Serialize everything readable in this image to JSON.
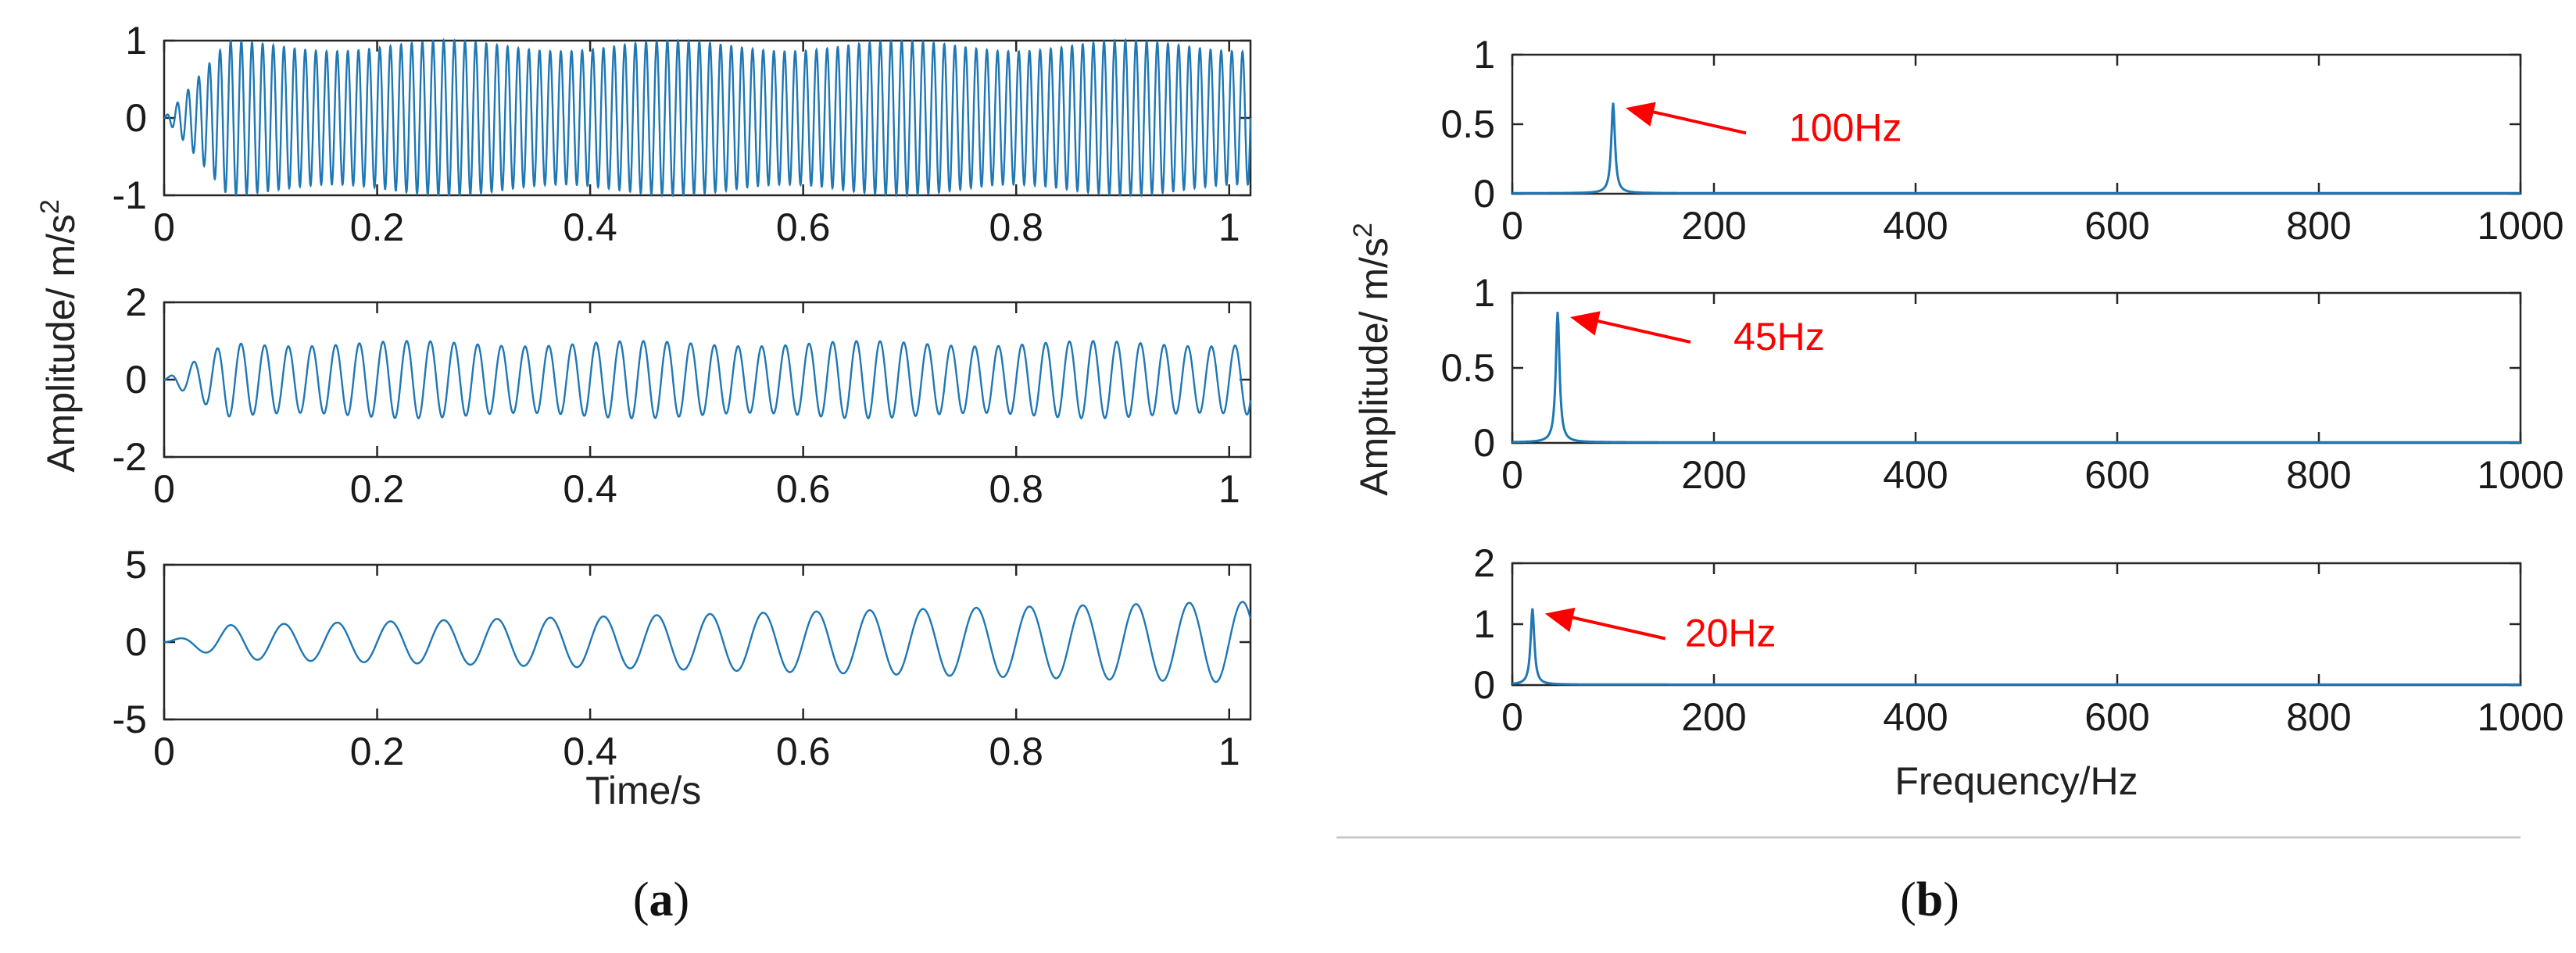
{
  "figure": {
    "caption_a": {
      "open": "(",
      "letter": "a",
      "close": ")"
    },
    "caption_b": {
      "open": "(",
      "letter": "b",
      "close": ")"
    }
  },
  "chart_data": [
    {
      "type": "line",
      "panel": "a",
      "series": [
        {
          "frequency_hz": 100,
          "amplitude": 1.0
        }
      ],
      "xlim": [
        0,
        1.02
      ],
      "ylim": [
        -1,
        1
      ],
      "xticks": [
        "0",
        "0.2",
        "0.4",
        "0.6",
        "0.8",
        "1"
      ],
      "yticks": [
        "-1",
        "0",
        "1"
      ],
      "color": "#1f77b4"
    },
    {
      "type": "line",
      "panel": "a",
      "series": [
        {
          "frequency_hz": 45,
          "amplitude": 1.0
        }
      ],
      "xlim": [
        0,
        1.02
      ],
      "ylim": [
        -2,
        2
      ],
      "xticks": [
        "0",
        "0.2",
        "0.4",
        "0.6",
        "0.8",
        "1"
      ],
      "yticks": [
        "-2",
        "0",
        "2"
      ],
      "color": "#1f77b4"
    },
    {
      "type": "line",
      "panel": "a",
      "series": [
        {
          "frequency_hz": 20,
          "amplitude_start": 1.0,
          "amplitude_end": 2.6
        }
      ],
      "xlim": [
        0,
        1.02
      ],
      "ylim": [
        -5,
        5
      ],
      "xticks": [
        "0",
        "0.2",
        "0.4",
        "0.6",
        "0.8",
        "1"
      ],
      "yticks": [
        "-5",
        "0",
        "5"
      ],
      "xlabel": "Time/s",
      "color": "#1f77b4"
    },
    {
      "type": "line",
      "panel": "b",
      "peak": {
        "x": 100,
        "y": 0.65
      },
      "xlim": [
        0,
        1000
      ],
      "ylim": [
        0,
        1
      ],
      "xticks": [
        "0",
        "200",
        "400",
        "600",
        "800",
        "1000"
      ],
      "yticks": [
        "0",
        "0.5",
        "1"
      ],
      "annotation": "100Hz",
      "color": "#1f77b4"
    },
    {
      "type": "line",
      "panel": "b",
      "peak": {
        "x": 45,
        "y": 0.87
      },
      "xlim": [
        0,
        1000
      ],
      "ylim": [
        0,
        1
      ],
      "xticks": [
        "0",
        "200",
        "400",
        "600",
        "800",
        "1000"
      ],
      "yticks": [
        "0",
        "0.5",
        "1"
      ],
      "annotation": "45Hz",
      "color": "#1f77b4"
    },
    {
      "type": "line",
      "panel": "b",
      "peak": {
        "x": 20,
        "y": 1.25
      },
      "xlim": [
        0,
        1000
      ],
      "ylim": [
        0,
        2
      ],
      "xticks": [
        "0",
        "200",
        "400",
        "600",
        "800",
        "1000"
      ],
      "yticks": [
        "0",
        "1",
        "2"
      ],
      "annotation": "20Hz",
      "xlabel": "Frequency/Hz",
      "color": "#1f77b4"
    }
  ],
  "shared_ylabel": {
    "text": "Amplitude/  m/s",
    "superscript": "2"
  }
}
